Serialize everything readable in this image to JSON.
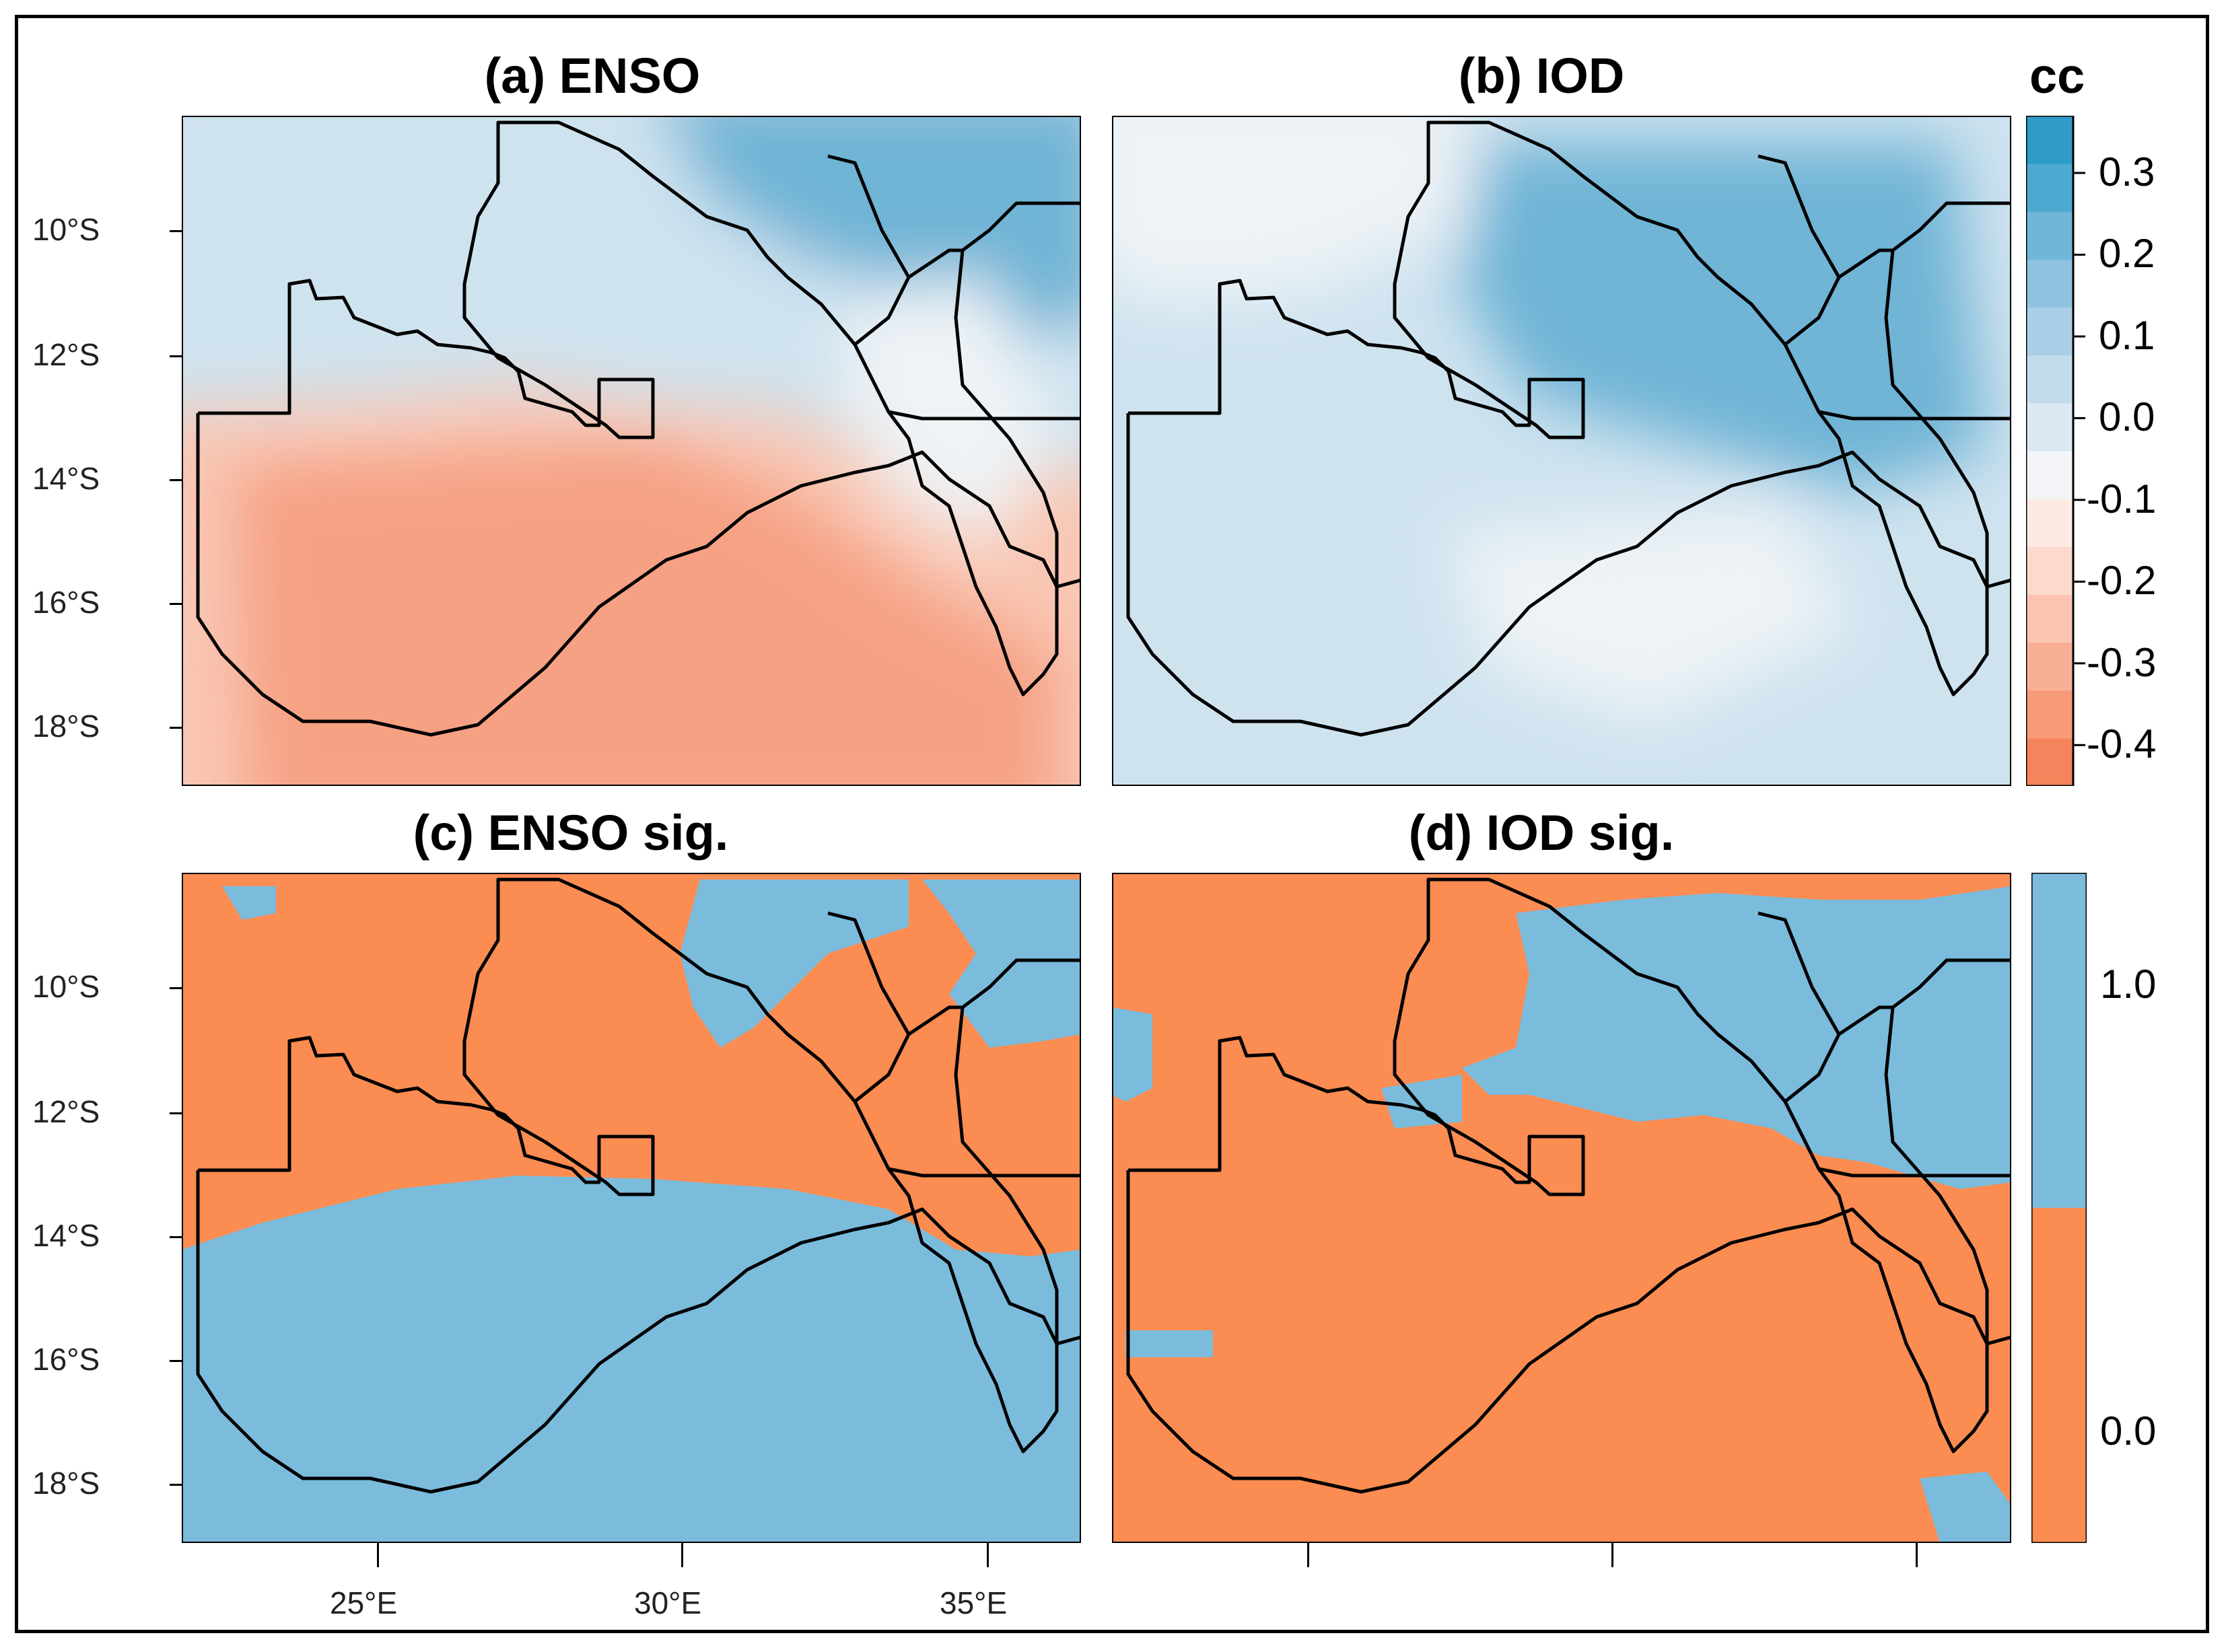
{
  "panels": {
    "a": {
      "title": "(a) ENSO"
    },
    "b": {
      "title": "(b) IOD"
    },
    "c": {
      "title": "(c) ENSO sig."
    },
    "d": {
      "title": "(d) IOD sig."
    }
  },
  "lat_labels": [
    "10°S",
    "12°S",
    "14°S",
    "16°S",
    "18°S"
  ],
  "lon_labels": [
    "25°E",
    "30°E",
    "35°E"
  ],
  "colorbar_cc": {
    "title": "cc",
    "tick_labels": [
      "0.3",
      "0.2",
      "0.1",
      "0.0",
      "-0.1",
      "-0.2",
      "-0.3",
      "-0.4"
    ],
    "ticks": [
      0.3,
      0.2,
      0.1,
      0.0,
      -0.1,
      -0.2,
      -0.3,
      -0.4
    ],
    "range": [
      -0.45,
      0.37
    ],
    "colors": [
      "#f4845c",
      "#f79a79",
      "#f9af96",
      "#fbc4b2",
      "#fcd9cc",
      "#fdeae3",
      "#f3f5f8",
      "#dbe9f2",
      "#c3dcec",
      "#a9cfe6",
      "#8ec3df",
      "#70b6d8",
      "#4ea9d0",
      "#2e9bc8"
    ]
  },
  "colorbar_sig": {
    "tick_labels": [
      "1.0",
      "0.0"
    ],
    "colors": {
      "significant": "#7bbcdd",
      "not_significant": "#fb8c52"
    }
  },
  "map_colors": {
    "positive_strong": "#6fb4d6",
    "positive_weak": "#cfe3ef",
    "neutral": "#eef3f6",
    "negative_weak": "#f9c7b4",
    "negative_strong": "#f6a184",
    "sig_blue": "#7bbcdd",
    "sig_orange": "#fb8c52",
    "border": "#000000"
  }
}
